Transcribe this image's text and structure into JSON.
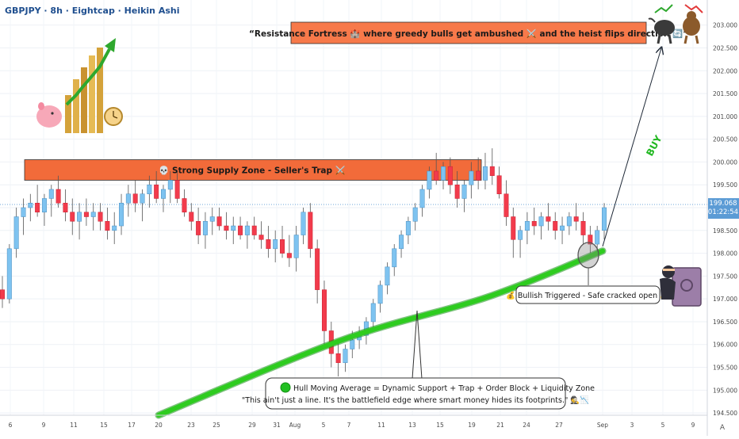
{
  "header": {
    "title": "GBPJPY · 8h · Eightcap · Heikin Ashi"
  },
  "annotations": {
    "resistance_banner": "“Resistance Fortress 🏰 where greedy bulls get ambushed ⚔️ and the heist flips direction 🔄”",
    "supply_zone_label": "💀 Strong Supply Zone - Seller's Trap ⚔️",
    "buy_label": "BUY",
    "bullish_triggered": "💰 Bullish Triggered - Safe cracked open 💰",
    "hma_line1": "Hull Moving Average = Dynamic Support + Trap + Order Block + Liquidity Zone",
    "hma_line2": "\"This ain't just a line. It's the battlefield edge where smart money hides its footprints.\" 🕵️📉"
  },
  "price_axis": {
    "current_price": "199.068",
    "countdown": "01:22:54",
    "corner_label": "A",
    "colors": {
      "current_price_bg": "#5b9bd5"
    }
  },
  "chart_data": {
    "type": "candlestick",
    "symbol": "GBPJPY",
    "timeframe": "8h",
    "broker": "Eightcap",
    "candle_style": "Heikin Ashi",
    "ylim": [
      194.45,
      203.55
    ],
    "y_ticks": [
      194.5,
      195.0,
      195.5,
      196.0,
      196.5,
      197.0,
      197.5,
      198.0,
      198.5,
      199.0,
      199.5,
      200.0,
      200.5,
      201.0,
      201.5,
      202.0,
      202.5,
      203.0
    ],
    "x_ticks": [
      "6",
      "9",
      "11",
      "15",
      "17",
      "20",
      "23",
      "25",
      "29",
      "31",
      "Aug",
      "5",
      "7",
      "11",
      "13",
      "15",
      "19",
      "21",
      "24",
      "27",
      "Sep",
      "3",
      "5",
      "9"
    ],
    "last_price": 199.068,
    "colors": {
      "up": "#7ec3f0",
      "down": "#f23b4c",
      "hma": "#2ecc1f",
      "zone": "#f26b3a"
    },
    "supply_zone": {
      "low": 199.6,
      "high": 200.05
    },
    "hma_curve": [
      [
        0,
        194.45
      ],
      [
        100,
        196.1
      ],
      [
        180,
        197.05
      ],
      [
        242,
        198.05
      ]
    ],
    "projection": {
      "from": [
        242,
        198.15
      ],
      "to": [
        274,
        202.5
      ]
    },
    "candles": [
      {
        "o": 197.2,
        "h": 197.5,
        "l": 196.8,
        "c": 197.0
      },
      {
        "o": 197.0,
        "h": 198.2,
        "l": 196.9,
        "c": 198.1
      },
      {
        "o": 198.1,
        "h": 199.0,
        "l": 197.9,
        "c": 198.8
      },
      {
        "o": 198.8,
        "h": 199.2,
        "l": 198.4,
        "c": 199.0
      },
      {
        "o": 199.0,
        "h": 199.3,
        "l": 198.7,
        "c": 199.1
      },
      {
        "o": 199.1,
        "h": 199.5,
        "l": 198.8,
        "c": 198.9
      },
      {
        "o": 198.9,
        "h": 199.3,
        "l": 198.6,
        "c": 199.2
      },
      {
        "o": 199.2,
        "h": 199.5,
        "l": 198.8,
        "c": 199.4
      },
      {
        "o": 199.4,
        "h": 199.7,
        "l": 199.0,
        "c": 199.1
      },
      {
        "o": 199.1,
        "h": 199.4,
        "l": 198.7,
        "c": 198.9
      },
      {
        "o": 198.9,
        "h": 199.2,
        "l": 198.4,
        "c": 198.7
      },
      {
        "o": 198.7,
        "h": 199.1,
        "l": 198.3,
        "c": 198.9
      },
      {
        "o": 198.9,
        "h": 199.2,
        "l": 198.6,
        "c": 198.8
      },
      {
        "o": 198.8,
        "h": 199.1,
        "l": 198.5,
        "c": 198.9
      },
      {
        "o": 198.9,
        "h": 199.1,
        "l": 198.5,
        "c": 198.7
      },
      {
        "o": 198.7,
        "h": 199.0,
        "l": 198.3,
        "c": 198.5
      },
      {
        "o": 198.5,
        "h": 198.9,
        "l": 198.2,
        "c": 198.6
      },
      {
        "o": 198.6,
        "h": 199.3,
        "l": 198.4,
        "c": 199.1
      },
      {
        "o": 199.1,
        "h": 199.5,
        "l": 198.8,
        "c": 199.3
      },
      {
        "o": 199.3,
        "h": 199.6,
        "l": 198.9,
        "c": 199.1
      },
      {
        "o": 199.1,
        "h": 199.4,
        "l": 198.7,
        "c": 199.3
      },
      {
        "o": 199.3,
        "h": 199.7,
        "l": 199.0,
        "c": 199.5
      },
      {
        "o": 199.5,
        "h": 199.8,
        "l": 199.1,
        "c": 199.2
      },
      {
        "o": 199.2,
        "h": 199.5,
        "l": 198.9,
        "c": 199.4
      },
      {
        "o": 199.4,
        "h": 199.8,
        "l": 199.1,
        "c": 199.6
      },
      {
        "o": 199.6,
        "h": 199.8,
        "l": 199.1,
        "c": 199.2
      },
      {
        "o": 199.2,
        "h": 199.4,
        "l": 198.8,
        "c": 198.9
      },
      {
        "o": 198.9,
        "h": 199.1,
        "l": 198.5,
        "c": 198.7
      },
      {
        "o": 198.7,
        "h": 199.0,
        "l": 198.2,
        "c": 198.4
      },
      {
        "o": 198.4,
        "h": 198.9,
        "l": 198.1,
        "c": 198.7
      },
      {
        "o": 198.7,
        "h": 199.0,
        "l": 198.4,
        "c": 198.8
      },
      {
        "o": 198.8,
        "h": 199.0,
        "l": 198.5,
        "c": 198.6
      },
      {
        "o": 198.6,
        "h": 198.9,
        "l": 198.3,
        "c": 198.5
      },
      {
        "o": 198.5,
        "h": 198.8,
        "l": 198.2,
        "c": 198.6
      },
      {
        "o": 198.6,
        "h": 198.8,
        "l": 198.3,
        "c": 198.4
      },
      {
        "o": 198.4,
        "h": 198.7,
        "l": 198.1,
        "c": 198.6
      },
      {
        "o": 198.6,
        "h": 198.8,
        "l": 198.3,
        "c": 198.4
      },
      {
        "o": 198.4,
        "h": 198.7,
        "l": 198.1,
        "c": 198.3
      },
      {
        "o": 198.3,
        "h": 198.6,
        "l": 197.9,
        "c": 198.1
      },
      {
        "o": 198.1,
        "h": 198.5,
        "l": 197.8,
        "c": 198.3
      },
      {
        "o": 198.3,
        "h": 198.6,
        "l": 197.9,
        "c": 198.0
      },
      {
        "o": 198.0,
        "h": 198.4,
        "l": 197.7,
        "c": 197.9
      },
      {
        "o": 197.9,
        "h": 198.6,
        "l": 197.6,
        "c": 198.4
      },
      {
        "o": 198.4,
        "h": 199.0,
        "l": 198.2,
        "c": 198.9
      },
      {
        "o": 198.9,
        "h": 199.1,
        "l": 197.9,
        "c": 198.1
      },
      {
        "o": 198.1,
        "h": 198.3,
        "l": 196.9,
        "c": 197.2
      },
      {
        "o": 197.2,
        "h": 197.4,
        "l": 195.9,
        "c": 196.3
      },
      {
        "o": 196.3,
        "h": 196.5,
        "l": 195.5,
        "c": 195.8
      },
      {
        "o": 195.8,
        "h": 196.1,
        "l": 195.3,
        "c": 195.6
      },
      {
        "o": 195.6,
        "h": 196.0,
        "l": 195.4,
        "c": 195.9
      },
      {
        "o": 195.9,
        "h": 196.3,
        "l": 195.7,
        "c": 196.1
      },
      {
        "o": 196.1,
        "h": 196.4,
        "l": 195.9,
        "c": 196.2
      },
      {
        "o": 196.2,
        "h": 196.6,
        "l": 196.0,
        "c": 196.5
      },
      {
        "o": 196.5,
        "h": 197.0,
        "l": 196.3,
        "c": 196.9
      },
      {
        "o": 196.9,
        "h": 197.4,
        "l": 196.7,
        "c": 197.3
      },
      {
        "o": 197.3,
        "h": 197.8,
        "l": 197.1,
        "c": 197.7
      },
      {
        "o": 197.7,
        "h": 198.2,
        "l": 197.5,
        "c": 198.1
      },
      {
        "o": 198.1,
        "h": 198.5,
        "l": 197.9,
        "c": 198.4
      },
      {
        "o": 198.4,
        "h": 198.8,
        "l": 198.2,
        "c": 198.7
      },
      {
        "o": 198.7,
        "h": 199.1,
        "l": 198.5,
        "c": 199.0
      },
      {
        "o": 199.0,
        "h": 199.5,
        "l": 198.8,
        "c": 199.4
      },
      {
        "o": 199.4,
        "h": 199.9,
        "l": 199.2,
        "c": 199.8
      },
      {
        "o": 199.8,
        "h": 200.2,
        "l": 199.5,
        "c": 199.6
      },
      {
        "o": 199.6,
        "h": 200.0,
        "l": 199.4,
        "c": 199.9
      },
      {
        "o": 199.9,
        "h": 200.1,
        "l": 199.3,
        "c": 199.5
      },
      {
        "o": 199.5,
        "h": 199.8,
        "l": 199.0,
        "c": 199.2
      },
      {
        "o": 199.2,
        "h": 199.6,
        "l": 198.9,
        "c": 199.5
      },
      {
        "o": 199.5,
        "h": 200.0,
        "l": 199.2,
        "c": 199.8
      },
      {
        "o": 199.8,
        "h": 200.1,
        "l": 199.4,
        "c": 199.6
      },
      {
        "o": 199.6,
        "h": 200.2,
        "l": 199.4,
        "c": 199.9
      },
      {
        "o": 199.9,
        "h": 200.3,
        "l": 199.5,
        "c": 199.7
      },
      {
        "o": 199.7,
        "h": 199.9,
        "l": 199.2,
        "c": 199.3
      },
      {
        "o": 199.3,
        "h": 199.6,
        "l": 198.6,
        "c": 198.8
      },
      {
        "o": 198.8,
        "h": 199.0,
        "l": 197.9,
        "c": 198.3
      },
      {
        "o": 198.3,
        "h": 198.6,
        "l": 197.9,
        "c": 198.5
      },
      {
        "o": 198.5,
        "h": 198.9,
        "l": 198.2,
        "c": 198.7
      },
      {
        "o": 198.7,
        "h": 199.0,
        "l": 198.4,
        "c": 198.6
      },
      {
        "o": 198.6,
        "h": 198.9,
        "l": 198.3,
        "c": 198.8
      },
      {
        "o": 198.8,
        "h": 199.1,
        "l": 198.5,
        "c": 198.7
      },
      {
        "o": 198.7,
        "h": 198.9,
        "l": 198.3,
        "c": 198.5
      },
      {
        "o": 198.5,
        "h": 198.8,
        "l": 198.2,
        "c": 198.6
      },
      {
        "o": 198.6,
        "h": 198.9,
        "l": 198.4,
        "c": 198.8
      },
      {
        "o": 198.8,
        "h": 199.1,
        "l": 198.5,
        "c": 198.7
      },
      {
        "o": 198.7,
        "h": 198.9,
        "l": 198.2,
        "c": 198.4
      },
      {
        "o": 198.4,
        "h": 198.6,
        "l": 198.0,
        "c": 198.2
      },
      {
        "o": 198.2,
        "h": 198.6,
        "l": 198.0,
        "c": 198.5
      },
      {
        "o": 198.5,
        "h": 199.1,
        "l": 198.3,
        "c": 199.0
      }
    ]
  }
}
